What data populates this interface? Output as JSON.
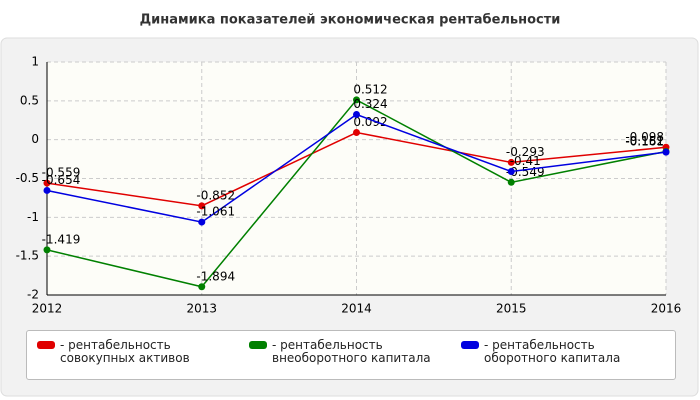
{
  "chart_data": {
    "type": "line",
    "title": "Динамика показателей экономическая рентабельности",
    "categories": [
      "2012",
      "2013",
      "2014",
      "2015",
      "2016"
    ],
    "series": [
      {
        "name": "- рентабельность совокупных активов",
        "color": "#e00000",
        "values": [
          -0.559,
          -0.852,
          0.092,
          -0.293,
          -0.098
        ]
      },
      {
        "name": "- рентабельность внеоборотного капитала",
        "color": "#008000",
        "values": [
          -1.419,
          -1.894,
          0.512,
          -0.549,
          -0.152
        ]
      },
      {
        "name": "- рентабельность оборотного капитала",
        "color": "#0000e0",
        "values": [
          -0.654,
          -1.061,
          0.324,
          -0.41,
          -0.161
        ]
      }
    ],
    "ylim": [
      -2,
      1
    ],
    "yticks": [
      -2,
      -1.5,
      -1,
      -0.5,
      0,
      0.5,
      1
    ],
    "grid": true
  }
}
